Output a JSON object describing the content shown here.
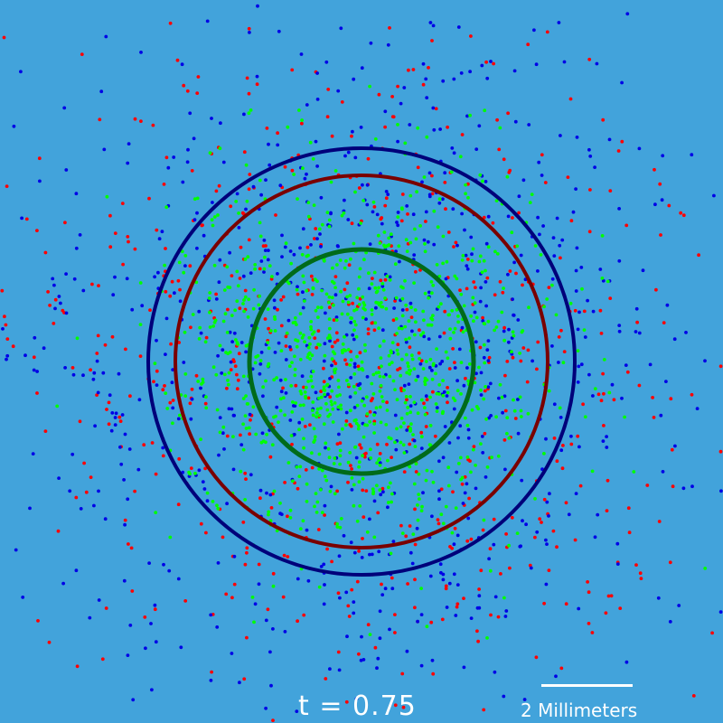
{
  "colors": {
    "background": "#42a3db",
    "particle_red": "#ff0000",
    "particle_blue": "#0000e6",
    "particle_green": "#00ff00",
    "ring_outer": "#00007a",
    "ring_middle": "#7a0000",
    "ring_inner": "#006b1a",
    "text": "#ffffff"
  },
  "time": {
    "label": "t",
    "separator": "=",
    "value": "0.75"
  },
  "scale": {
    "label": "2 Millimeters"
  }
}
